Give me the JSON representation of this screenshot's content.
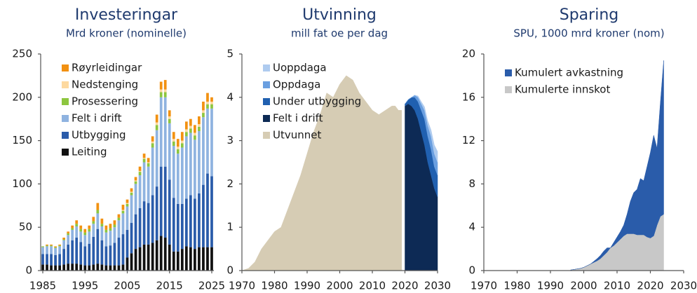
{
  "chart_data": [
    {
      "type": "bar",
      "title": "Investeringar",
      "subtitle": "Mrd kroner (nominelle)",
      "x": [
        1985,
        1986,
        1987,
        1988,
        1989,
        1990,
        1991,
        1992,
        1993,
        1994,
        1995,
        1996,
        1997,
        1998,
        1999,
        2000,
        2001,
        2002,
        2003,
        2004,
        2005,
        2006,
        2007,
        2008,
        2009,
        2010,
        2011,
        2012,
        2013,
        2014,
        2015,
        2016,
        2017,
        2018,
        2019,
        2020,
        2021,
        2022,
        2023,
        2024,
        2025
      ],
      "xlim": [
        1984.5,
        2025.5
      ],
      "xticks": [
        1985,
        1995,
        2005,
        2015,
        2025
      ],
      "ylim": [
        0,
        250
      ],
      "yticks": [
        0,
        50,
        100,
        150,
        200,
        250
      ],
      "legend": "upper left",
      "series": [
        {
          "name": "Leiting",
          "color": "#111111",
          "values": [
            7,
            7,
            6,
            6,
            6,
            7,
            8,
            8,
            8,
            7,
            6,
            6,
            7,
            8,
            7,
            6,
            6,
            6,
            6,
            7,
            15,
            20,
            25,
            27,
            30,
            30,
            32,
            35,
            40,
            38,
            30,
            22,
            22,
            25,
            28,
            27,
            25,
            27,
            27,
            27,
            27
          ]
        },
        {
          "name": "Utbygging",
          "color": "#2a5caa",
          "values": [
            12,
            12,
            13,
            12,
            13,
            18,
            22,
            27,
            30,
            26,
            22,
            25,
            32,
            40,
            28,
            22,
            23,
            26,
            32,
            35,
            32,
            35,
            40,
            45,
            50,
            48,
            55,
            62,
            80,
            82,
            75,
            62,
            55,
            52,
            55,
            60,
            58,
            62,
            72,
            85,
            82
          ]
        },
        {
          "name": "Felt i drift",
          "color": "#8fb3e0",
          "values": [
            8,
            9,
            9,
            8,
            9,
            10,
            11,
            12,
            13,
            12,
            13,
            14,
            15,
            18,
            16,
            16,
            17,
            18,
            20,
            24,
            27,
            32,
            35,
            38,
            45,
            42,
            55,
            65,
            80,
            80,
            65,
            60,
            58,
            65,
            72,
            72,
            68,
            72,
            78,
            75,
            78
          ]
        },
        {
          "name": "Prosessering",
          "color": "#8dc63f",
          "values": [
            1,
            1,
            1,
            1,
            1,
            1,
            2,
            2,
            3,
            3,
            3,
            3,
            3,
            4,
            3,
            3,
            3,
            3,
            3,
            3,
            3,
            3,
            3,
            4,
            4,
            4,
            5,
            6,
            6,
            6,
            5,
            5,
            5,
            5,
            5,
            5,
            5,
            5,
            5,
            5,
            5
          ]
        },
        {
          "name": "Nedstenging",
          "color": "#fdd9a0",
          "values": [
            0,
            0,
            0,
            0,
            0,
            0,
            0,
            0,
            0,
            0,
            0,
            0,
            0,
            0,
            0,
            0,
            0,
            0,
            0,
            1,
            1,
            1,
            1,
            1,
            1,
            1,
            2,
            3,
            3,
            3,
            3,
            3,
            3,
            3,
            3,
            3,
            3,
            3,
            3,
            3,
            3
          ]
        },
        {
          "name": "Røyrleidingar",
          "color": "#f29111",
          "values": [
            0,
            1,
            1,
            1,
            1,
            2,
            2,
            3,
            4,
            4,
            4,
            4,
            5,
            8,
            6,
            5,
            5,
            5,
            4,
            6,
            4,
            4,
            4,
            5,
            5,
            5,
            6,
            9,
            9,
            11,
            7,
            8,
            9,
            10,
            9,
            8,
            9,
            9,
            10,
            10,
            5
          ]
        }
      ]
    },
    {
      "type": "area",
      "title": "Utvinning",
      "subtitle": "mill fat oe per dag",
      "x": [
        1970,
        1972,
        1974,
        1976,
        1978,
        1980,
        1982,
        1984,
        1986,
        1988,
        1990,
        1992,
        1994,
        1996,
        1998,
        2000,
        2002,
        2004,
        2006,
        2008,
        2010,
        2012,
        2014,
        2016,
        2017,
        2018,
        2019,
        2020,
        2021,
        2022,
        2023,
        2024,
        2025,
        2026,
        2027,
        2028,
        2029,
        2030
      ],
      "xlim": [
        1970,
        2030
      ],
      "xticks": [
        1970,
        1980,
        1990,
        2000,
        2010,
        2020,
        2030
      ],
      "ylim": [
        0,
        5
      ],
      "yticks": [
        0,
        1,
        2,
        3,
        4,
        5
      ],
      "legend": "upper left",
      "series": [
        {
          "name": "Utvunnet",
          "color": "#d6ccb4",
          "values": [
            0,
            0.05,
            0.2,
            0.5,
            0.7,
            0.9,
            1.0,
            1.4,
            1.8,
            2.2,
            2.7,
            3.2,
            3.6,
            4.1,
            4.0,
            4.3,
            4.5,
            4.4,
            4.1,
            3.9,
            3.7,
            3.6,
            3.7,
            3.8,
            3.8,
            3.7,
            3.7,
            null,
            null,
            null,
            null,
            null,
            null,
            null,
            null,
            null,
            null,
            null
          ]
        },
        {
          "name": "Felt i drift",
          "color": "#0d2a55",
          "values": [
            null,
            null,
            null,
            null,
            null,
            null,
            null,
            null,
            null,
            null,
            null,
            null,
            null,
            null,
            null,
            null,
            null,
            null,
            null,
            null,
            null,
            null,
            null,
            null,
            null,
            null,
            null,
            3.8,
            3.85,
            3.8,
            3.7,
            3.5,
            3.2,
            2.9,
            2.5,
            2.2,
            1.9,
            1.7
          ]
        },
        {
          "name": "Under utbygging",
          "color": "#2060b0",
          "values": [
            null,
            null,
            null,
            null,
            null,
            null,
            null,
            null,
            null,
            null,
            null,
            null,
            null,
            null,
            null,
            null,
            null,
            null,
            null,
            null,
            null,
            null,
            null,
            null,
            null,
            null,
            null,
            0.05,
            0.1,
            0.2,
            0.3,
            0.4,
            0.5,
            0.6,
            0.6,
            0.6,
            0.5,
            0.5
          ]
        },
        {
          "name": "Oppdaga",
          "color": "#6a9fe0",
          "values": [
            null,
            null,
            null,
            null,
            null,
            null,
            null,
            null,
            null,
            null,
            null,
            null,
            null,
            null,
            null,
            null,
            null,
            null,
            null,
            null,
            null,
            null,
            null,
            null,
            null,
            null,
            null,
            0,
            0,
            0,
            0.05,
            0.1,
            0.15,
            0.2,
            0.25,
            0.3,
            0.3,
            0.3
          ]
        },
        {
          "name": "Uoppdaga",
          "color": "#aecbef",
          "values": [
            null,
            null,
            null,
            null,
            null,
            null,
            null,
            null,
            null,
            null,
            null,
            null,
            null,
            null,
            null,
            null,
            null,
            null,
            null,
            null,
            null,
            null,
            null,
            null,
            null,
            null,
            null,
            0,
            0,
            0,
            0,
            0.03,
            0.05,
            0.08,
            0.1,
            0.15,
            0.2,
            0.25
          ]
        }
      ]
    },
    {
      "type": "area",
      "title": "Sparing",
      "subtitle": "SPU, 1000 mrd kroner (nom)",
      "x": [
        1996,
        1997,
        1998,
        1999,
        2000,
        2001,
        2002,
        2003,
        2004,
        2005,
        2006,
        2007,
        2008,
        2009,
        2010,
        2011,
        2012,
        2013,
        2014,
        2015,
        2016,
        2017,
        2018,
        2019,
        2020,
        2021,
        2022,
        2023,
        2024
      ],
      "xlim": [
        1970,
        2030
      ],
      "xticks": [
        1970,
        1980,
        1990,
        2000,
        2010,
        2020,
        2030
      ],
      "ylim": [
        0,
        20
      ],
      "yticks": [
        0,
        4,
        8,
        12,
        16,
        20
      ],
      "legend": "upper left",
      "series": [
        {
          "name": "Kumulerte innskot",
          "color": "#c8c8c8",
          "values": [
            0.05,
            0.1,
            0.15,
            0.2,
            0.3,
            0.45,
            0.6,
            0.75,
            0.9,
            1.1,
            1.4,
            1.7,
            2.1,
            2.3,
            2.6,
            2.9,
            3.2,
            3.4,
            3.4,
            3.4,
            3.3,
            3.3,
            3.3,
            3.1,
            3.0,
            3.2,
            4.2,
            5.0,
            5.2
          ]
        },
        {
          "name": "Kumulert avkastning",
          "color": "#2a5caa",
          "values": [
            0,
            0,
            0,
            0,
            0,
            0,
            0,
            0.1,
            0.2,
            0.3,
            0.4,
            0.4,
            0,
            0.3,
            0.5,
            0.7,
            1.0,
            1.8,
            3.0,
            3.8,
            4.2,
            5.2,
            5.0,
            6.5,
            7.9,
            9.3,
            7.1,
            10.5,
            14.2
          ]
        }
      ]
    }
  ]
}
